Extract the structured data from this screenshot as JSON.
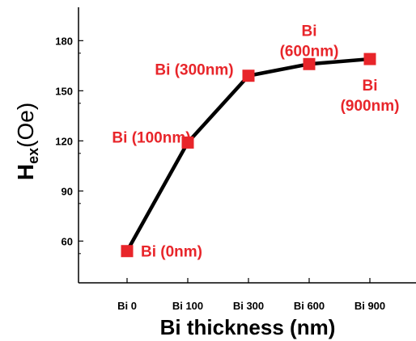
{
  "chart_data": {
    "type": "line",
    "categories": [
      "Bi 0",
      "Bi 100",
      "Bi 300",
      "Bi 600",
      "Bi 900"
    ],
    "values": [
      54,
      119,
      159,
      166,
      169
    ],
    "xlabel": "Bi thickness (nm)",
    "ylabel_main": "H",
    "ylabel_sub": "ex",
    "ylabel_unit": "(Oe)",
    "ylim": [
      35,
      200
    ],
    "yticks": [
      60,
      90,
      120,
      150,
      180
    ],
    "grid": false,
    "line_color": "#000000",
    "marker_color": "#e8252a",
    "label_color": "#e8252a",
    "point_labels": [
      "Bi (0nm)",
      "Bi (100nm)",
      "Bi (300nm)",
      [
        "Bi",
        "(600nm)"
      ],
      [
        "Bi",
        "(900nm)"
      ]
    ]
  }
}
